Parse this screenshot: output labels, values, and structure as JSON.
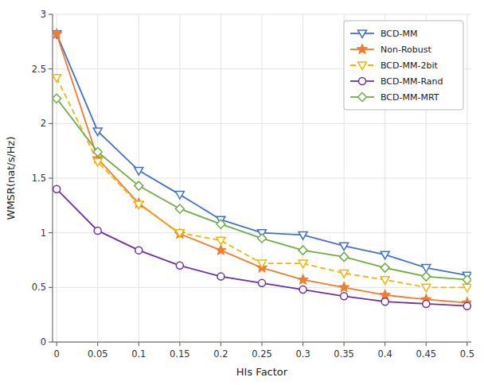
{
  "chart_data": {
    "type": "line",
    "xlabel": "HIs Factor",
    "ylabel": "WMSR(nat/s/Hz)",
    "x": [
      0,
      0.05,
      0.1,
      0.15,
      0.2,
      0.25,
      0.3,
      0.35,
      0.4,
      0.45,
      0.5
    ],
    "series": [
      {
        "name": "BCD-MM",
        "color": "#4472C4",
        "marker": "triangle-down",
        "line_style": "solid",
        "values": [
          2.82,
          1.93,
          1.57,
          1.35,
          1.12,
          1.0,
          0.98,
          0.88,
          0.8,
          0.68,
          0.61
        ]
      },
      {
        "name": "Non-Robust",
        "color": "#ED7D31",
        "marker": "star",
        "line_style": "solid",
        "values": [
          2.82,
          1.68,
          1.27,
          0.99,
          0.84,
          0.68,
          0.57,
          0.5,
          0.43,
          0.39,
          0.36
        ]
      },
      {
        "name": "BCD-MM-2bit",
        "color": "#EEB800",
        "marker": "triangle-down",
        "line_style": "dashed",
        "values": [
          2.42,
          1.65,
          1.26,
          1.0,
          0.93,
          0.72,
          0.72,
          0.63,
          0.57,
          0.5,
          0.5
        ]
      },
      {
        "name": "BCD-MM-Rand",
        "color": "#7030A0",
        "marker": "circle",
        "line_style": "solid",
        "values": [
          1.4,
          1.02,
          0.84,
          0.7,
          0.6,
          0.54,
          0.48,
          0.42,
          0.37,
          0.35,
          0.33
        ]
      },
      {
        "name": "BCD-MM-MRT",
        "color": "#70AD47",
        "marker": "diamond",
        "line_style": "solid",
        "values": [
          2.23,
          1.74,
          1.43,
          1.22,
          1.08,
          0.95,
          0.84,
          0.78,
          0.68,
          0.6,
          0.57
        ]
      }
    ],
    "xlim": [
      -0.005,
      0.505
    ],
    "ylim": [
      0,
      3.0
    ],
    "xticks": [
      0,
      0.05,
      0.1,
      0.15,
      0.2,
      0.25,
      0.3,
      0.35,
      0.4,
      0.45,
      0.5
    ],
    "yticks": [
      0,
      0.5,
      1,
      1.5,
      2,
      2.5,
      3
    ],
    "grid": true,
    "legend": "upper right"
  }
}
